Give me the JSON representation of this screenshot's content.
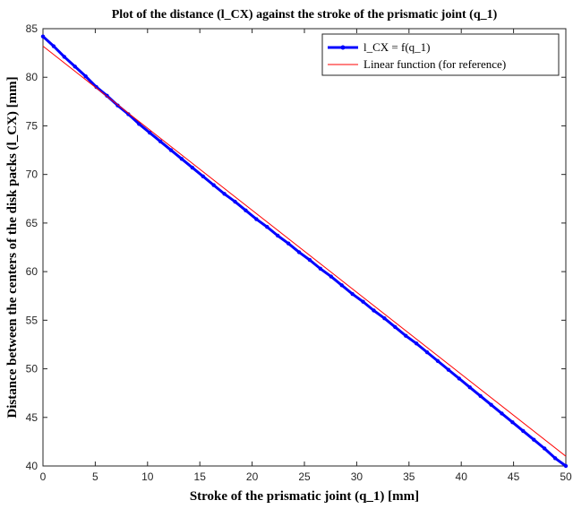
{
  "chart_data": {
    "type": "line",
    "title": "Plot of the distance (l_CX) against the stroke of the prismatic joint (q_1)",
    "xlabel": "Stroke of the prismatic joint (q_1) [mm]",
    "ylabel": "Distance between the centers of the disk packs (l_CX) [mm]",
    "xlim": [
      0,
      50
    ],
    "ylim": [
      40,
      85
    ],
    "xticks": [
      0,
      5,
      10,
      15,
      20,
      25,
      30,
      35,
      40,
      45,
      50
    ],
    "yticks": [
      40,
      45,
      50,
      55,
      60,
      65,
      70,
      75,
      80,
      85
    ],
    "grid": false,
    "legend_position": "top-right",
    "series": [
      {
        "name": "l_CX = f(q_1)",
        "color": "#0000ff",
        "marker": "dot",
        "x": [
          0,
          1.0204,
          2.0408,
          3.0612,
          4.0816,
          5.102,
          6.1224,
          7.1429,
          8.1633,
          9.1837,
          10.2041,
          11.2245,
          12.2449,
          13.2653,
          14.2857,
          15.3061,
          16.3265,
          17.3469,
          18.3673,
          19.3878,
          20.4082,
          21.4286,
          22.449,
          23.4694,
          24.4898,
          25.5102,
          26.5306,
          27.551,
          28.5714,
          29.5918,
          30.6122,
          31.6327,
          32.6531,
          33.6735,
          34.6939,
          35.7143,
          36.7347,
          37.7551,
          38.7755,
          39.7959,
          40.8163,
          41.8367,
          42.8571,
          43.8776,
          44.898,
          45.9184,
          46.9388,
          47.9592,
          48.9796,
          50.0
        ],
        "y": [
          84.2,
          83.2,
          82.1,
          81.1,
          80.1,
          79.0,
          78.1,
          77.1,
          76.2,
          75.2,
          74.3,
          73.4,
          72.5,
          71.6,
          70.7,
          69.8,
          68.9,
          68.0,
          67.2,
          66.3,
          65.4,
          64.6,
          63.7,
          62.9,
          62.0,
          61.2,
          60.3,
          59.5,
          58.6,
          57.7,
          56.9,
          56.0,
          55.2,
          54.3,
          53.4,
          52.6,
          51.7,
          50.8,
          49.9,
          49.0,
          48.1,
          47.2,
          46.3,
          45.4,
          44.5,
          43.6,
          42.7,
          41.8,
          40.8,
          40.0
        ]
      },
      {
        "name": "Linear function (for reference)",
        "color": "#ff0000",
        "x": [
          0,
          50
        ],
        "y": [
          83.2,
          41.0
        ]
      }
    ]
  }
}
